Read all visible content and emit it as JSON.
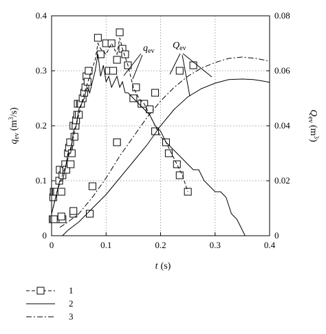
{
  "chart_data": {
    "type": "line",
    "x_axis": {
      "label_main": "t",
      "label_unit": "(s)",
      "range": [
        0,
        0.4
      ],
      "ticks": [
        0,
        0.1,
        0.2,
        0.3,
        0.4
      ],
      "tick_labels": [
        "0",
        "0.1",
        "0.2",
        "0.3",
        "0.4"
      ]
    },
    "y_axis_left": {
      "label_main": "q",
      "label_sub": "ev",
      "label_unit_open": "(m",
      "label_unit_sup": "3",
      "label_unit_close": "/s)",
      "range": [
        0,
        0.4
      ],
      "ticks": [
        0,
        0.1,
        0.2,
        0.3,
        0.4
      ],
      "tick_labels": [
        "0",
        "0.1",
        "0.2",
        "0.3",
        "0.4"
      ]
    },
    "y_axis_right": {
      "label_main": "Q",
      "label_sub": "ev",
      "label_unit_open": "(m",
      "label_unit_sup": "3",
      "label_unit_close": ")",
      "range": [
        0,
        0.08
      ],
      "ticks": [
        0,
        0.02,
        0.04,
        0.06,
        0.08
      ],
      "tick_labels": [
        "0",
        "0.02",
        "0.04",
        "0.06",
        "0.08"
      ]
    },
    "grid": "dotted",
    "legend_placement": "bottom-left",
    "legend": [
      {
        "key": "1",
        "style": "dashed line with square markers"
      },
      {
        "key": "2",
        "style": "solid line"
      },
      {
        "key": "3",
        "style": "dash-dot line"
      }
    ],
    "annotations": [
      {
        "main": "q",
        "sub": "ev",
        "target": "left-axis curves"
      },
      {
        "main": "Q",
        "sub": "ev",
        "target": "right-axis curves"
      }
    ],
    "series": [
      {
        "key": "1",
        "axis": "left",
        "quantity": "q_ev",
        "style": "markers",
        "points": [
          [
            0.002,
            0.03
          ],
          [
            0.003,
            0.07
          ],
          [
            0.004,
            0.08
          ],
          [
            0.008,
            0.08
          ],
          [
            0.01,
            0.08
          ],
          [
            0.012,
            0.03
          ],
          [
            0.014,
            0.1
          ],
          [
            0.015,
            0.12
          ],
          [
            0.018,
            0.08
          ],
          [
            0.02,
            0.11
          ],
          [
            0.022,
            0.12
          ],
          [
            0.025,
            0.13
          ],
          [
            0.027,
            0.12
          ],
          [
            0.03,
            0.15
          ],
          [
            0.032,
            0.16
          ],
          [
            0.034,
            0.17
          ],
          [
            0.035,
            0.13
          ],
          [
            0.037,
            0.15
          ],
          [
            0.04,
            0.2
          ],
          [
            0.042,
            0.18
          ],
          [
            0.044,
            0.2
          ],
          [
            0.045,
            0.21
          ],
          [
            0.047,
            0.22
          ],
          [
            0.048,
            0.24
          ],
          [
            0.05,
            0.22
          ],
          [
            0.052,
            0.24
          ],
          [
            0.054,
            0.24
          ],
          [
            0.057,
            0.25
          ],
          [
            0.06,
            0.26
          ],
          [
            0.062,
            0.27
          ],
          [
            0.064,
            0.29
          ],
          [
            0.066,
            0.28
          ],
          [
            0.068,
            0.3
          ],
          [
            0.085,
            0.36
          ],
          [
            0.09,
            0.33
          ],
          [
            0.1,
            0.35
          ],
          [
            0.11,
            0.35
          ],
          [
            0.105,
            0.3
          ],
          [
            0.113,
            0.3
          ],
          [
            0.12,
            0.32
          ],
          [
            0.125,
            0.37
          ],
          [
            0.13,
            0.34
          ],
          [
            0.135,
            0.33
          ],
          [
            0.14,
            0.31
          ],
          [
            0.15,
            0.25
          ],
          [
            0.155,
            0.27
          ],
          [
            0.165,
            0.24
          ],
          [
            0.17,
            0.24
          ],
          [
            0.18,
            0.23
          ],
          [
            0.19,
            0.19
          ],
          [
            0.21,
            0.17
          ],
          [
            0.215,
            0.15
          ],
          [
            0.23,
            0.13
          ],
          [
            0.235,
            0.11
          ],
          [
            0.25,
            0.08
          ],
          [
            0.12,
            0.17
          ],
          [
            0.07,
            0.04
          ],
          [
            0.04,
            0.04
          ],
          [
            0.02,
            0.03
          ]
        ]
      },
      {
        "key": "1",
        "axis": "left",
        "quantity": "q_ev",
        "style": "dashed",
        "points": [
          [
            0,
            0.04
          ],
          [
            0.01,
            0.08
          ],
          [
            0.02,
            0.11
          ],
          [
            0.03,
            0.14
          ],
          [
            0.04,
            0.18
          ],
          [
            0.05,
            0.22
          ],
          [
            0.06,
            0.26
          ],
          [
            0.07,
            0.29
          ],
          [
            0.08,
            0.32
          ],
          [
            0.085,
            0.35
          ],
          [
            0.09,
            0.34
          ],
          [
            0.1,
            0.33
          ],
          [
            0.11,
            0.35
          ],
          [
            0.12,
            0.33
          ],
          [
            0.125,
            0.36
          ],
          [
            0.13,
            0.34
          ],
          [
            0.14,
            0.31
          ],
          [
            0.15,
            0.27
          ],
          [
            0.16,
            0.25
          ],
          [
            0.17,
            0.24
          ],
          [
            0.18,
            0.22
          ],
          [
            0.19,
            0.2
          ],
          [
            0.2,
            0.18
          ],
          [
            0.21,
            0.17
          ],
          [
            0.22,
            0.15
          ],
          [
            0.23,
            0.13
          ],
          [
            0.24,
            0.11
          ],
          [
            0.25,
            0.08
          ]
        ]
      },
      {
        "key": "1",
        "axis": "right",
        "quantity": "Q_ev",
        "style": "markers",
        "points": [
          [
            0.004,
            0.006
          ],
          [
            0.018,
            0.007
          ],
          [
            0.04,
            0.009
          ],
          [
            0.075,
            0.018
          ],
          [
            0.12,
            0.034
          ],
          [
            0.19,
            0.052
          ],
          [
            0.235,
            0.06
          ],
          [
            0.26,
            0.062
          ]
        ]
      },
      {
        "key": "2",
        "axis": "left",
        "quantity": "q_ev",
        "style": "solid",
        "points": [
          [
            0,
            0.04
          ],
          [
            0.005,
            0.06
          ],
          [
            0.01,
            0.08
          ],
          [
            0.015,
            0.1
          ],
          [
            0.02,
            0.1
          ],
          [
            0.025,
            0.12
          ],
          [
            0.03,
            0.15
          ],
          [
            0.035,
            0.15
          ],
          [
            0.04,
            0.19
          ],
          [
            0.045,
            0.2
          ],
          [
            0.05,
            0.23
          ],
          [
            0.055,
            0.24
          ],
          [
            0.06,
            0.25
          ],
          [
            0.065,
            0.27
          ],
          [
            0.07,
            0.26
          ],
          [
            0.075,
            0.28
          ],
          [
            0.08,
            0.3
          ],
          [
            0.085,
            0.33
          ],
          [
            0.09,
            0.29
          ],
          [
            0.095,
            0.31
          ],
          [
            0.1,
            0.28
          ],
          [
            0.105,
            0.29
          ],
          [
            0.11,
            0.27
          ],
          [
            0.115,
            0.28
          ],
          [
            0.12,
            0.29
          ],
          [
            0.125,
            0.27
          ],
          [
            0.13,
            0.28
          ],
          [
            0.135,
            0.26
          ],
          [
            0.14,
            0.26
          ],
          [
            0.15,
            0.25
          ],
          [
            0.16,
            0.24
          ],
          [
            0.17,
            0.23
          ],
          [
            0.18,
            0.22
          ],
          [
            0.19,
            0.2
          ],
          [
            0.2,
            0.19
          ],
          [
            0.21,
            0.17
          ],
          [
            0.22,
            0.16
          ],
          [
            0.23,
            0.15
          ],
          [
            0.24,
            0.14
          ],
          [
            0.25,
            0.13
          ],
          [
            0.26,
            0.12
          ],
          [
            0.27,
            0.12
          ],
          [
            0.275,
            0.11
          ],
          [
            0.28,
            0.1
          ],
          [
            0.29,
            0.09
          ],
          [
            0.3,
            0.08
          ],
          [
            0.305,
            0.08
          ],
          [
            0.31,
            0.08
          ],
          [
            0.32,
            0.07
          ],
          [
            0.33,
            0.04
          ],
          [
            0.34,
            0.03
          ],
          [
            0.345,
            0.02
          ],
          [
            0.35,
            0.01
          ],
          [
            0.355,
            0
          ]
        ]
      },
      {
        "key": "2",
        "axis": "right",
        "quantity": "Q_ev",
        "style": "solid",
        "points": [
          [
            0.02,
            0
          ],
          [
            0.03,
            0.002
          ],
          [
            0.05,
            0.005
          ],
          [
            0.075,
            0.01
          ],
          [
            0.1,
            0.015
          ],
          [
            0.125,
            0.021
          ],
          [
            0.15,
            0.027
          ],
          [
            0.175,
            0.033
          ],
          [
            0.2,
            0.04
          ],
          [
            0.225,
            0.046
          ],
          [
            0.25,
            0.0505
          ],
          [
            0.275,
            0.0535
          ],
          [
            0.3,
            0.0555
          ],
          [
            0.325,
            0.0568
          ],
          [
            0.35,
            0.057
          ],
          [
            0.37,
            0.0568
          ],
          [
            0.39,
            0.0562
          ],
          [
            0.4,
            0.0558
          ]
        ]
      },
      {
        "key": "3",
        "axis": "right",
        "quantity": "Q_ev",
        "style": "dashdot",
        "points": [
          [
            0.015,
            0.003
          ],
          [
            0.03,
            0.005
          ],
          [
            0.05,
            0.008
          ],
          [
            0.075,
            0.014
          ],
          [
            0.1,
            0.021
          ],
          [
            0.125,
            0.029
          ],
          [
            0.15,
            0.036
          ],
          [
            0.175,
            0.043
          ],
          [
            0.2,
            0.049
          ],
          [
            0.225,
            0.054
          ],
          [
            0.25,
            0.058
          ],
          [
            0.275,
            0.061
          ],
          [
            0.3,
            0.063
          ],
          [
            0.325,
            0.0645
          ],
          [
            0.35,
            0.065
          ],
          [
            0.375,
            0.0645
          ],
          [
            0.4,
            0.0635
          ]
        ]
      }
    ]
  }
}
